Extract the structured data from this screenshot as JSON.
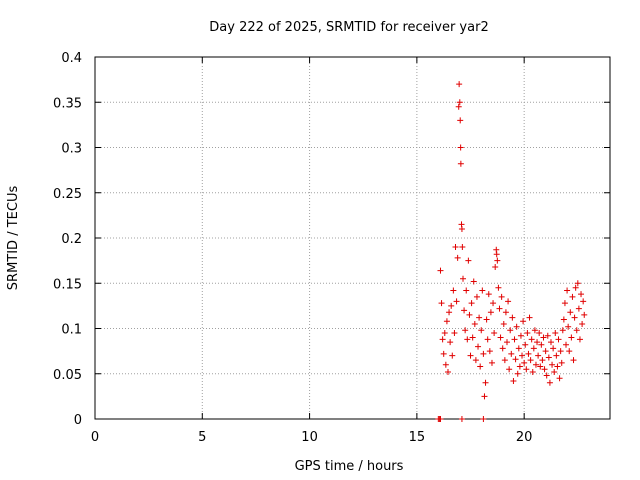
{
  "chart_data": {
    "type": "scatter",
    "title": "Day 222 of 2025, SRMTID for receiver yar2",
    "xlabel": "GPS time / hours",
    "ylabel": "SRMTID / TECUs",
    "xlim": [
      0,
      24
    ],
    "ylim": [
      0,
      0.4
    ],
    "x_ticks": [
      0,
      5,
      10,
      15,
      20
    ],
    "x_tick_labels": [
      "0",
      "5",
      "10",
      "15",
      "20"
    ],
    "y_ticks": [
      0,
      0.05,
      0.1,
      0.15,
      0.2,
      0.25,
      0.3,
      0.35,
      0.4
    ],
    "y_tick_labels": [
      "0",
      "0.05",
      "0.1",
      "0.15",
      "0.2",
      "0.25",
      "0.3",
      "0.35",
      "0.4"
    ],
    "grid": true,
    "marker": "+",
    "color": "#e00000",
    "series": [
      {
        "name": "SRMTID",
        "points": [
          [
            16.0,
            0.0
          ],
          [
            16.05,
            0.0
          ],
          [
            16.1,
            0.0
          ],
          [
            17.1,
            0.0
          ],
          [
            18.1,
            0.0
          ],
          [
            16.1,
            0.164
          ],
          [
            16.15,
            0.128
          ],
          [
            16.2,
            0.088
          ],
          [
            16.25,
            0.072
          ],
          [
            16.3,
            0.095
          ],
          [
            16.35,
            0.06
          ],
          [
            16.4,
            0.108
          ],
          [
            16.45,
            0.052
          ],
          [
            16.5,
            0.118
          ],
          [
            16.55,
            0.085
          ],
          [
            16.6,
            0.125
          ],
          [
            16.65,
            0.07
          ],
          [
            16.7,
            0.142
          ],
          [
            16.75,
            0.095
          ],
          [
            16.8,
            0.19
          ],
          [
            16.85,
            0.13
          ],
          [
            16.9,
            0.178
          ],
          [
            16.95,
            0.345
          ],
          [
            16.97,
            0.37
          ],
          [
            17.0,
            0.35
          ],
          [
            17.02,
            0.33
          ],
          [
            17.04,
            0.3
          ],
          [
            17.05,
            0.282
          ],
          [
            17.08,
            0.215
          ],
          [
            17.1,
            0.21
          ],
          [
            17.12,
            0.19
          ],
          [
            17.15,
            0.155
          ],
          [
            17.2,
            0.12
          ],
          [
            17.25,
            0.098
          ],
          [
            17.3,
            0.142
          ],
          [
            17.35,
            0.088
          ],
          [
            17.4,
            0.175
          ],
          [
            17.45,
            0.115
          ],
          [
            17.5,
            0.07
          ],
          [
            17.55,
            0.128
          ],
          [
            17.6,
            0.09
          ],
          [
            17.65,
            0.152
          ],
          [
            17.7,
            0.105
          ],
          [
            17.75,
            0.065
          ],
          [
            17.8,
            0.135
          ],
          [
            17.85,
            0.08
          ],
          [
            17.9,
            0.112
          ],
          [
            17.95,
            0.058
          ],
          [
            18.0,
            0.098
          ],
          [
            18.05,
            0.142
          ],
          [
            18.1,
            0.072
          ],
          [
            18.15,
            0.025
          ],
          [
            18.2,
            0.04
          ],
          [
            18.25,
            0.11
          ],
          [
            18.3,
            0.088
          ],
          [
            18.35,
            0.138
          ],
          [
            18.4,
            0.075
          ],
          [
            18.45,
            0.118
          ],
          [
            18.5,
            0.062
          ],
          [
            18.55,
            0.128
          ],
          [
            18.6,
            0.095
          ],
          [
            18.65,
            0.168
          ],
          [
            18.7,
            0.187
          ],
          [
            18.72,
            0.182
          ],
          [
            18.75,
            0.175
          ],
          [
            18.8,
            0.145
          ],
          [
            18.85,
            0.122
          ],
          [
            18.9,
            0.09
          ],
          [
            18.95,
            0.135
          ],
          [
            19.0,
            0.078
          ],
          [
            19.05,
            0.105
          ],
          [
            19.1,
            0.065
          ],
          [
            19.15,
            0.118
          ],
          [
            19.2,
            0.085
          ],
          [
            19.25,
            0.13
          ],
          [
            19.3,
            0.055
          ],
          [
            19.35,
            0.098
          ],
          [
            19.4,
            0.072
          ],
          [
            19.45,
            0.112
          ],
          [
            19.5,
            0.042
          ],
          [
            19.55,
            0.088
          ],
          [
            19.6,
            0.066
          ],
          [
            19.65,
            0.102
          ],
          [
            19.7,
            0.05
          ],
          [
            19.75,
            0.078
          ],
          [
            19.8,
            0.058
          ],
          [
            19.85,
            0.092
          ],
          [
            19.9,
            0.07
          ],
          [
            19.95,
            0.108
          ],
          [
            20.0,
            0.062
          ],
          [
            20.05,
            0.082
          ],
          [
            20.1,
            0.055
          ],
          [
            20.15,
            0.095
          ],
          [
            20.2,
            0.072
          ],
          [
            20.25,
            0.112
          ],
          [
            20.3,
            0.065
          ],
          [
            20.35,
            0.088
          ],
          [
            20.4,
            0.052
          ],
          [
            20.45,
            0.078
          ],
          [
            20.5,
            0.098
          ],
          [
            20.55,
            0.06
          ],
          [
            20.6,
            0.085
          ],
          [
            20.65,
            0.07
          ],
          [
            20.7,
            0.095
          ],
          [
            20.75,
            0.058
          ],
          [
            20.8,
            0.082
          ],
          [
            20.85,
            0.065
          ],
          [
            20.9,
            0.09
          ],
          [
            20.95,
            0.055
          ],
          [
            21.0,
            0.075
          ],
          [
            21.05,
            0.048
          ],
          [
            21.1,
            0.092
          ],
          [
            21.15,
            0.068
          ],
          [
            21.2,
            0.04
          ],
          [
            21.25,
            0.085
          ],
          [
            21.3,
            0.06
          ],
          [
            21.35,
            0.078
          ],
          [
            21.4,
            0.052
          ],
          [
            21.45,
            0.095
          ],
          [
            21.5,
            0.07
          ],
          [
            21.55,
            0.058
          ],
          [
            21.6,
            0.088
          ],
          [
            21.65,
            0.045
          ],
          [
            21.7,
            0.075
          ],
          [
            21.75,
            0.062
          ],
          [
            21.8,
            0.098
          ],
          [
            21.85,
            0.11
          ],
          [
            21.9,
            0.128
          ],
          [
            21.95,
            0.082
          ],
          [
            22.0,
            0.142
          ],
          [
            22.05,
            0.102
          ],
          [
            22.1,
            0.075
          ],
          [
            22.15,
            0.118
          ],
          [
            22.2,
            0.09
          ],
          [
            22.25,
            0.135
          ],
          [
            22.3,
            0.065
          ],
          [
            22.35,
            0.112
          ],
          [
            22.4,
            0.145
          ],
          [
            22.45,
            0.098
          ],
          [
            22.5,
            0.15
          ],
          [
            22.55,
            0.122
          ],
          [
            22.6,
            0.088
          ],
          [
            22.65,
            0.138
          ],
          [
            22.7,
            0.105
          ],
          [
            22.75,
            0.13
          ],
          [
            22.8,
            0.115
          ]
        ]
      }
    ]
  }
}
